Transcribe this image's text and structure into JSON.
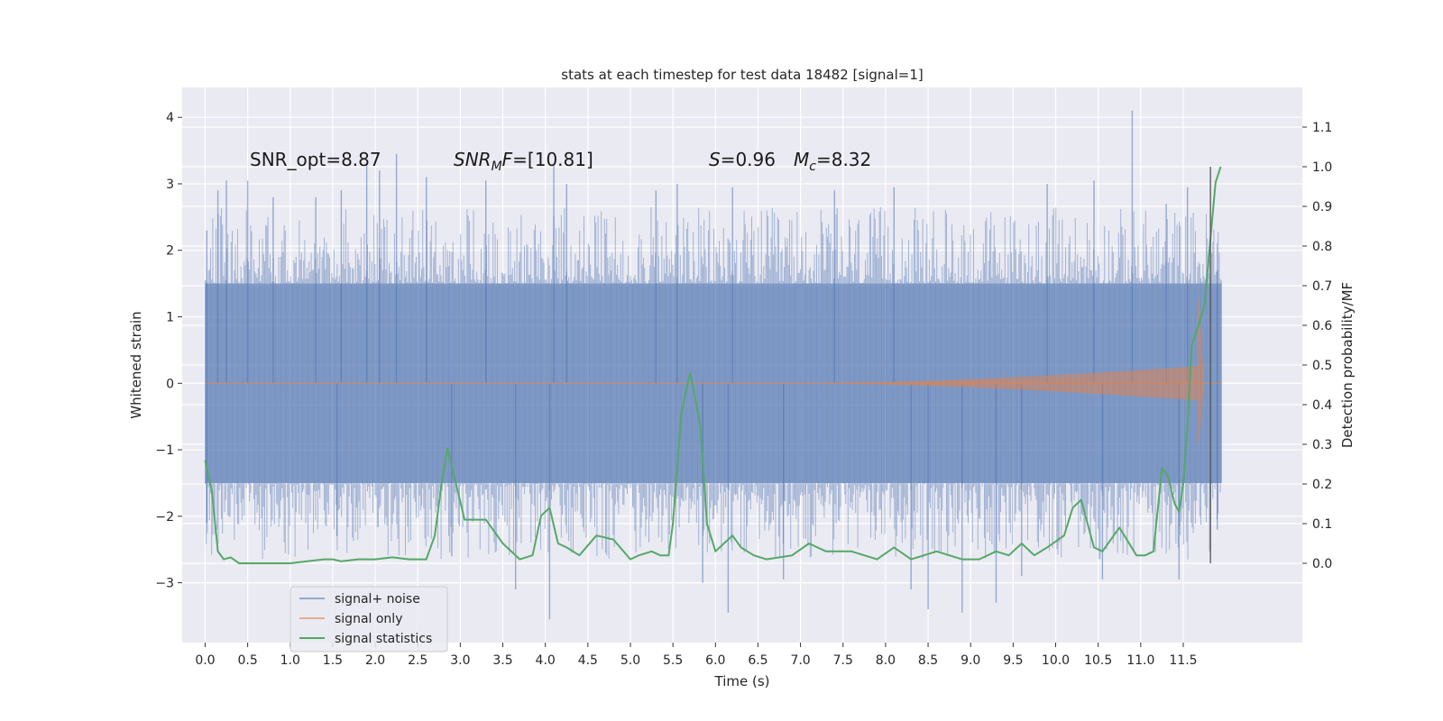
{
  "chart_data": {
    "type": "line",
    "title": "stats at each timestep for test data 18482 [signal=1]",
    "xlabel": "Time (s)",
    "ylabel": "Whitened strain",
    "ylabel_right": "Detection probability/MF",
    "xlim": [
      -0.27,
      12.9
    ],
    "ylim": [
      -3.9,
      4.45
    ],
    "ylim_right": [
      -0.2,
      1.2
    ],
    "x_ticks": [
      0.0,
      0.5,
      1.0,
      1.5,
      2.0,
      2.5,
      3.0,
      3.5,
      4.0,
      4.5,
      5.0,
      5.5,
      6.0,
      6.5,
      7.0,
      7.5,
      8.0,
      8.5,
      9.0,
      9.5,
      10.0,
      10.5,
      11.0,
      11.5
    ],
    "x_tick_labels": [
      "0.0",
      "0.5",
      "1.0",
      "1.5",
      "2.0",
      "2.5",
      "3.0",
      "3.5",
      "4.0",
      "4.5",
      "5.0",
      "5.5",
      "6.0",
      "6.5",
      "7.0",
      "7.5",
      "8.0",
      "8.5",
      "9.0",
      "9.5",
      "10.0",
      "10.5",
      "11.0",
      "11.5"
    ],
    "y_ticks": [
      -3,
      -2,
      -1,
      0,
      1,
      2,
      3,
      4
    ],
    "y_tick_labels": [
      "−3",
      "−2",
      "−1",
      "0",
      "1",
      "2",
      "3",
      "4"
    ],
    "y_ticks_right": [
      0.0,
      0.1,
      0.2,
      0.3,
      0.4,
      0.5,
      0.6,
      0.7,
      0.8,
      0.9,
      1.0,
      1.1
    ],
    "y_tick_labels_right": [
      "0.0",
      "0.1",
      "0.2",
      "0.3",
      "0.4",
      "0.5",
      "0.6",
      "0.7",
      "0.8",
      "0.9",
      "1.0",
      "1.1"
    ],
    "grid": true,
    "vline_x": 11.82,
    "vline_range_right": [
      0.0,
      1.0
    ],
    "noise": {
      "t_start": 0.0,
      "t_end": 11.95,
      "band_low": -1.5,
      "band_high": 1.5,
      "spikes": [
        {
          "t": 0.02,
          "v": 2.3
        },
        {
          "t": 0.15,
          "v": 2.9
        },
        {
          "t": 0.25,
          "v": 3.05
        },
        {
          "t": 0.5,
          "v": 3.05
        },
        {
          "t": 0.8,
          "v": 2.8
        },
        {
          "t": 1.3,
          "v": 2.8
        },
        {
          "t": 1.6,
          "v": 2.9
        },
        {
          "t": 1.9,
          "v": 3.3
        },
        {
          "t": 2.05,
          "v": 3.2
        },
        {
          "t": 2.25,
          "v": 3.45
        },
        {
          "t": 2.6,
          "v": 3.1
        },
        {
          "t": 3.3,
          "v": 3.05
        },
        {
          "t": 4.1,
          "v": 3.3
        },
        {
          "t": 4.25,
          "v": 3.0
        },
        {
          "t": 5.3,
          "v": 2.9
        },
        {
          "t": 5.55,
          "v": 3.0
        },
        {
          "t": 6.2,
          "v": 2.95
        },
        {
          "t": 7.4,
          "v": 2.9
        },
        {
          "t": 8.1,
          "v": 2.95
        },
        {
          "t": 9.9,
          "v": 3.0
        },
        {
          "t": 10.45,
          "v": 3.05
        },
        {
          "t": 10.9,
          "v": 4.1
        },
        {
          "t": 11.3,
          "v": 2.7
        },
        {
          "t": 11.55,
          "v": 2.95
        },
        {
          "t": 11.9,
          "v": 1.7
        },
        {
          "t": 0.02,
          "v": -2.1
        },
        {
          "t": 1.55,
          "v": -2.3
        },
        {
          "t": 2.9,
          "v": -2.6
        },
        {
          "t": 3.65,
          "v": -3.1
        },
        {
          "t": 4.05,
          "v": -3.55
        },
        {
          "t": 5.85,
          "v": -3.0
        },
        {
          "t": 6.15,
          "v": -3.45
        },
        {
          "t": 6.8,
          "v": -2.95
        },
        {
          "t": 8.3,
          "v": -3.1
        },
        {
          "t": 8.5,
          "v": -3.4
        },
        {
          "t": 8.9,
          "v": -3.45
        },
        {
          "t": 9.3,
          "v": -3.3
        },
        {
          "t": 9.6,
          "v": -2.9
        },
        {
          "t": 10.55,
          "v": -2.95
        },
        {
          "t": 11.45,
          "v": -2.95
        },
        {
          "t": 11.9,
          "v": -2.2
        }
      ]
    },
    "chirp": {
      "t_start": 7.3,
      "t_peak": 11.68,
      "t_end": 11.74,
      "amp_end": 0.25,
      "peak_high": 1.3,
      "peak_low": -0.9
    },
    "series": [
      {
        "name": "signal+ noise",
        "color": "#4c72b0",
        "axis": "left"
      },
      {
        "name": "signal only",
        "color": "#dd8452",
        "axis": "left"
      },
      {
        "name": "signal statistics",
        "color": "#55a868",
        "axis": "right",
        "x": [
          0.0,
          0.08,
          0.15,
          0.22,
          0.3,
          0.4,
          0.5,
          0.7,
          1.0,
          1.2,
          1.4,
          1.5,
          1.6,
          1.8,
          2.0,
          2.2,
          2.4,
          2.6,
          2.7,
          2.78,
          2.85,
          2.95,
          3.05,
          3.2,
          3.3,
          3.5,
          3.7,
          3.85,
          3.95,
          4.05,
          4.15,
          4.25,
          4.4,
          4.6,
          4.8,
          5.0,
          5.1,
          5.25,
          5.35,
          5.45,
          5.5,
          5.6,
          5.7,
          5.75,
          5.82,
          5.9,
          6.0,
          6.1,
          6.2,
          6.3,
          6.45,
          6.6,
          6.9,
          7.1,
          7.3,
          7.6,
          7.9,
          8.1,
          8.3,
          8.6,
          8.9,
          9.1,
          9.3,
          9.45,
          9.6,
          9.75,
          9.9,
          10.1,
          10.2,
          10.3,
          10.45,
          10.55,
          10.75,
          10.95,
          11.05,
          11.15,
          11.25,
          11.32,
          11.4,
          11.45,
          11.5,
          11.55,
          11.6,
          11.68,
          11.75,
          11.82,
          11.88,
          11.94
        ],
        "values": [
          0.26,
          0.18,
          0.03,
          0.01,
          0.015,
          0.0,
          0.0,
          0.0,
          0.0,
          0.005,
          0.01,
          0.01,
          0.005,
          0.01,
          0.01,
          0.015,
          0.01,
          0.01,
          0.07,
          0.2,
          0.29,
          0.2,
          0.11,
          0.11,
          0.11,
          0.05,
          0.01,
          0.02,
          0.12,
          0.14,
          0.05,
          0.04,
          0.02,
          0.07,
          0.06,
          0.01,
          0.02,
          0.03,
          0.02,
          0.02,
          0.1,
          0.38,
          0.48,
          0.43,
          0.35,
          0.1,
          0.03,
          0.05,
          0.07,
          0.04,
          0.02,
          0.01,
          0.02,
          0.05,
          0.03,
          0.03,
          0.01,
          0.04,
          0.01,
          0.03,
          0.01,
          0.01,
          0.03,
          0.02,
          0.05,
          0.02,
          0.04,
          0.07,
          0.14,
          0.16,
          0.04,
          0.03,
          0.09,
          0.02,
          0.02,
          0.03,
          0.24,
          0.22,
          0.15,
          0.13,
          0.2,
          0.35,
          0.55,
          0.6,
          0.65,
          0.82,
          0.96,
          1.0
        ]
      }
    ],
    "legend": {
      "position": "lower-left",
      "entries": [
        {
          "label": "signal+ noise",
          "color": "#4c72b0"
        },
        {
          "label": "signal only",
          "color": "#dd8452"
        },
        {
          "label": "signal statistics",
          "color": "#55a868"
        }
      ]
    },
    "annotations": {
      "snr_opt": "SNR_opt=8.87",
      "snr_mf_main": "SNR",
      "snr_mf_sub": "M",
      "snr_mf_rest": "F",
      "snr_mf_value": "=[10.81]",
      "s_symbol": "S",
      "s_value": "=0.96",
      "mc_symbol": "M",
      "mc_sub": "c",
      "mc_value": "=8.32"
    }
  }
}
